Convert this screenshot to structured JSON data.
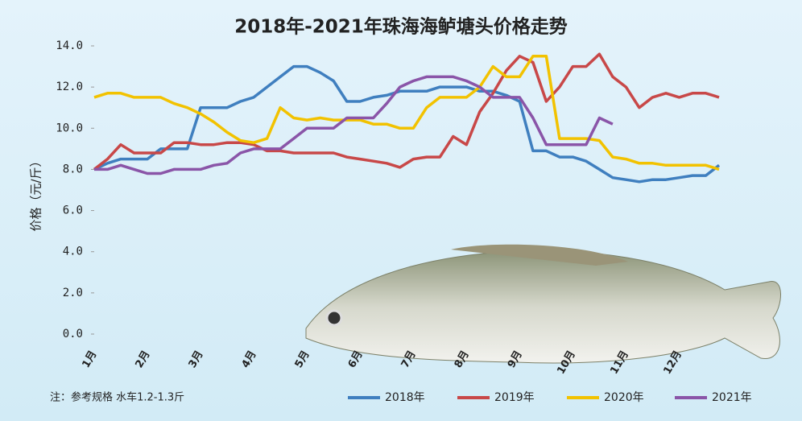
{
  "chart_data": {
    "type": "line",
    "title": "2018年-2021年珠海海鲈塘头价格走势",
    "y_label": "价格（元/斤）",
    "note": "注：参考规格  水车1.2-1.3斤",
    "categories": [
      "1月",
      null,
      null,
      null,
      "2月",
      null,
      null,
      null,
      "3月",
      null,
      null,
      null,
      "4月",
      null,
      null,
      null,
      "5月",
      null,
      null,
      null,
      "6月",
      null,
      null,
      null,
      "7月",
      null,
      null,
      null,
      "8月",
      null,
      null,
      null,
      "9月",
      null,
      null,
      null,
      "10月",
      null,
      null,
      null,
      "11月",
      null,
      null,
      null,
      "12月",
      null,
      null,
      null
    ],
    "ylim": [
      0,
      14
    ],
    "yticks": [
      {
        "value": 0,
        "label": "0.0"
      },
      {
        "value": 2,
        "label": "2.0"
      },
      {
        "value": 4,
        "label": "4.0"
      },
      {
        "value": 6,
        "label": "6.0"
      },
      {
        "value": 8,
        "label": "8.0"
      },
      {
        "value": 10,
        "label": "10.0"
      },
      {
        "value": 12,
        "label": "12.0"
      },
      {
        "value": 14,
        "label": "14.0"
      }
    ],
    "legend": "bottom",
    "series": [
      {
        "name": "2018年",
        "color": "#3f7fbf",
        "values": [
          8.0,
          8.3,
          8.5,
          8.5,
          8.5,
          9.0,
          9.0,
          9.0,
          11.0,
          11.0,
          11.0,
          11.3,
          11.5,
          12.0,
          12.5,
          13.0,
          13.0,
          12.7,
          12.3,
          11.3,
          11.3,
          11.5,
          11.6,
          11.8,
          11.8,
          11.8,
          12.0,
          12.0,
          12.0,
          11.8,
          11.8,
          11.6,
          11.3,
          8.9,
          8.9,
          8.6,
          8.6,
          8.4,
          8.0,
          7.6,
          7.5,
          7.4,
          7.5,
          7.5,
          7.6,
          7.7,
          7.7,
          8.2
        ]
      },
      {
        "name": "2019年",
        "color": "#c84848",
        "values": [
          8.0,
          8.5,
          9.2,
          8.8,
          8.8,
          8.8,
          9.3,
          9.3,
          9.2,
          9.2,
          9.3,
          9.3,
          9.2,
          8.9,
          8.9,
          8.8,
          8.8,
          8.8,
          8.8,
          8.6,
          8.5,
          8.4,
          8.3,
          8.1,
          8.5,
          8.6,
          8.6,
          9.6,
          9.2,
          10.8,
          11.7,
          12.8,
          13.5,
          13.2,
          11.3,
          12.0,
          13.0,
          13.0,
          13.6,
          12.5,
          12.0,
          11.0,
          11.5,
          11.7,
          11.5,
          11.7,
          11.7,
          11.5
        ]
      },
      {
        "name": "2020年",
        "color": "#f2c200",
        "values": [
          11.5,
          11.7,
          11.7,
          11.5,
          11.5,
          11.5,
          11.2,
          11.0,
          10.7,
          10.3,
          9.8,
          9.4,
          9.3,
          9.5,
          11.0,
          10.5,
          10.4,
          10.5,
          10.4,
          10.4,
          10.4,
          10.2,
          10.2,
          10.0,
          10.0,
          11.0,
          11.5,
          11.5,
          11.5,
          12.0,
          13.0,
          12.5,
          12.5,
          13.5,
          13.5,
          9.5,
          9.5,
          9.5,
          9.4,
          8.6,
          8.5,
          8.3,
          8.3,
          8.2,
          8.2,
          8.2,
          8.2,
          8.0
        ]
      },
      {
        "name": "2021年",
        "color": "#8a55a8",
        "values": [
          8.0,
          8.0,
          8.2,
          8.0,
          7.8,
          7.8,
          8.0,
          8.0,
          8.0,
          8.2,
          8.3,
          8.8,
          9.0,
          9.0,
          9.0,
          9.5,
          10.0,
          10.0,
          10.0,
          10.5,
          10.5,
          10.5,
          11.2,
          12.0,
          12.3,
          12.5,
          12.5,
          12.5,
          12.3,
          12.0,
          11.5,
          11.5,
          11.5,
          10.5,
          9.2,
          9.2,
          9.2,
          9.2,
          10.5,
          10.2,
          null,
          null,
          null,
          null,
          null,
          null,
          null,
          null
        ]
      }
    ]
  }
}
